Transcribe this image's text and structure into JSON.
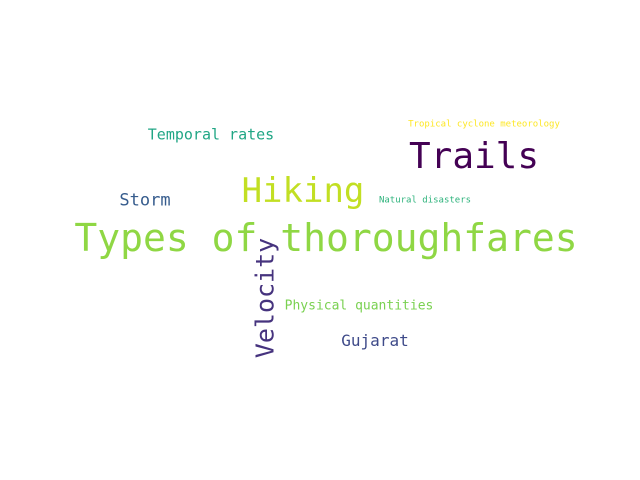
{
  "words": [
    {
      "id": "types",
      "text": "Types of thoroughfares",
      "color": "#8fd744"
    },
    {
      "id": "hiking",
      "text": "Hiking",
      "color": "#c2df23"
    },
    {
      "id": "trails",
      "text": "Trails",
      "color": "#440154"
    },
    {
      "id": "velocity",
      "text": "Velocity",
      "color": "#46337e"
    },
    {
      "id": "temporal",
      "text": "Temporal rates",
      "color": "#21a685"
    },
    {
      "id": "storm",
      "text": "Storm",
      "color": "#365c8d"
    },
    {
      "id": "gujarat",
      "text": "Gujarat",
      "color": "#3e4a89"
    },
    {
      "id": "physical",
      "text": "Physical quantities",
      "color": "#7ad151"
    },
    {
      "id": "natural",
      "text": "Natural disasters",
      "color": "#2eb37c"
    },
    {
      "id": "tropical",
      "text": "Tropical cyclone meteorology",
      "color": "#fde725"
    }
  ]
}
